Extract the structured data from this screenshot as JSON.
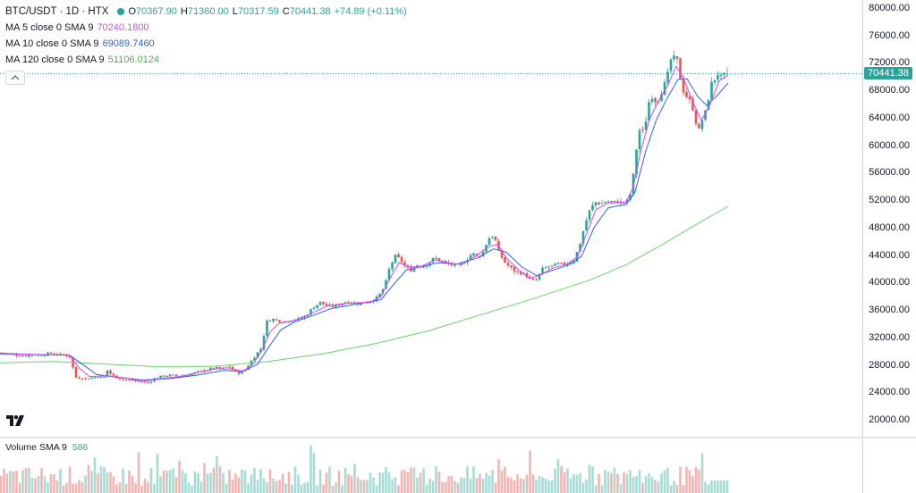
{
  "symbol": {
    "title": "BTC/USDT · 1D · HTX"
  },
  "ohlc": {
    "open_label": "O",
    "open": "70367.90",
    "high_label": "H",
    "high": "71360.00",
    "low_label": "L",
    "low": "70317.59",
    "close_label": "C",
    "close": "70441.38",
    "change": "+74.89 (+0.11%)"
  },
  "indicators": [
    {
      "name": "MA 5 close 0 SMA 9",
      "value": "70240.1800",
      "color": "#e040fb"
    },
    {
      "name": "MA 10 close 0 SMA 9",
      "value": "69089.7460",
      "color": "#2962ff"
    },
    {
      "name": "MA 120 close 0 SMA 9",
      "value": "51106.0124",
      "color": "#66d566"
    }
  ],
  "price_axis": {
    "labels": [
      "80000.00",
      "76000.00",
      "72000.00",
      "68000.00",
      "64000.00",
      "60000.00",
      "56000.00",
      "52000.00",
      "48000.00",
      "44000.00",
      "40000.00",
      "36000.00",
      "32000.00",
      "28000.00",
      "24000.00",
      "20000.00"
    ],
    "current_price_badge": "70441.38"
  },
  "volume": {
    "legend": "Volume SMA 9",
    "value": "586"
  },
  "colors": {
    "up": "#26a69a",
    "down": "#ef5350",
    "up_volume": "#a7dcd5",
    "down_volume": "#f6b3b1"
  },
  "icons": {
    "collapse": "chevron-up-icon",
    "logo": "tradingview-logo-icon"
  },
  "chart_data": {
    "type": "candlestick",
    "symbol": "BTC/USDT",
    "interval": "1D",
    "exchange": "HTX",
    "y_range": [
      18000,
      81000
    ],
    "ticks": [
      80000,
      76000,
      72000,
      68000,
      64000,
      60000,
      56000,
      52000,
      48000,
      44000,
      40000,
      36000,
      32000,
      28000,
      24000,
      20000
    ],
    "grid": false,
    "close_path": [
      [
        0,
        29800
      ],
      [
        10,
        29600
      ],
      [
        20,
        29400
      ],
      [
        28,
        29300
      ],
      [
        36,
        29500
      ],
      [
        46,
        29400
      ],
      [
        56,
        29700
      ],
      [
        66,
        29500
      ],
      [
        74,
        29400
      ],
      [
        80,
        29000
      ],
      [
        83,
        26200
      ],
      [
        90,
        26100
      ],
      [
        100,
        26000
      ],
      [
        108,
        26300
      ],
      [
        116,
        26100
      ],
      [
        120,
        27200
      ],
      [
        126,
        26400
      ],
      [
        134,
        26000
      ],
      [
        142,
        25800
      ],
      [
        150,
        25700
      ],
      [
        158,
        25600
      ],
      [
        164,
        25300
      ],
      [
        170,
        25800
      ],
      [
        176,
        26200
      ],
      [
        184,
        26400
      ],
      [
        192,
        26500
      ],
      [
        200,
        26300
      ],
      [
        208,
        26500
      ],
      [
        216,
        26800
      ],
      [
        224,
        27100
      ],
      [
        232,
        27300
      ],
      [
        240,
        27600
      ],
      [
        248,
        27400
      ],
      [
        256,
        27800
      ],
      [
        262,
        27000
      ],
      [
        268,
        26800
      ],
      [
        274,
        27300
      ],
      [
        280,
        28400
      ],
      [
        286,
        29500
      ],
      [
        292,
        30400
      ],
      [
        298,
        34300
      ],
      [
        304,
        34700
      ],
      [
        310,
        34500
      ],
      [
        318,
        34300
      ],
      [
        326,
        34600
      ],
      [
        334,
        34700
      ],
      [
        342,
        35100
      ],
      [
        350,
        36400
      ],
      [
        358,
        37100
      ],
      [
        366,
        36600
      ],
      [
        374,
        36500
      ],
      [
        382,
        37000
      ],
      [
        390,
        37300
      ],
      [
        398,
        36900
      ],
      [
        406,
        37100
      ],
      [
        414,
        37300
      ],
      [
        422,
        37800
      ],
      [
        430,
        39400
      ],
      [
        436,
        42400
      ],
      [
        442,
        43800
      ],
      [
        448,
        43300
      ],
      [
        454,
        42100
      ],
      [
        460,
        41800
      ],
      [
        466,
        42600
      ],
      [
        472,
        42300
      ],
      [
        480,
        42900
      ],
      [
        486,
        43600
      ],
      [
        492,
        43200
      ],
      [
        498,
        42800
      ],
      [
        504,
        42600
      ],
      [
        510,
        42400
      ],
      [
        516,
        42700
      ],
      [
        522,
        43400
      ],
      [
        528,
        44300
      ],
      [
        534,
        43700
      ],
      [
        540,
        44500
      ],
      [
        546,
        46400
      ],
      [
        552,
        46900
      ],
      [
        558,
        44300
      ],
      [
        564,
        43000
      ],
      [
        570,
        42200
      ],
      [
        576,
        41600
      ],
      [
        582,
        41400
      ],
      [
        588,
        41100
      ],
      [
        594,
        40200
      ],
      [
        600,
        40400
      ],
      [
        606,
        41900
      ],
      [
        612,
        42300
      ],
      [
        618,
        42400
      ],
      [
        624,
        42700
      ],
      [
        630,
        42600
      ],
      [
        636,
        42800
      ],
      [
        642,
        43300
      ],
      [
        648,
        45500
      ],
      [
        654,
        48500
      ],
      [
        660,
        50800
      ],
      [
        666,
        51700
      ],
      [
        672,
        51500
      ],
      [
        678,
        51900
      ],
      [
        684,
        51600
      ],
      [
        690,
        51800
      ],
      [
        696,
        51600
      ],
      [
        702,
        51900
      ],
      [
        706,
        53500
      ],
      [
        710,
        57700
      ],
      [
        714,
        62400
      ],
      [
        718,
        61700
      ],
      [
        722,
        63700
      ],
      [
        726,
        66700
      ],
      [
        730,
        67300
      ],
      [
        734,
        66100
      ],
      [
        738,
        67500
      ],
      [
        742,
        68500
      ],
      [
        746,
        70000
      ],
      [
        750,
        72500
      ],
      [
        754,
        72700
      ],
      [
        758,
        72200
      ],
      [
        762,
        68500
      ],
      [
        766,
        67400
      ],
      [
        770,
        66700
      ],
      [
        774,
        65700
      ],
      [
        778,
        63400
      ],
      [
        782,
        62000
      ],
      [
        786,
        64300
      ],
      [
        790,
        65100
      ],
      [
        794,
        68700
      ],
      [
        798,
        69400
      ],
      [
        802,
        70500
      ],
      [
        806,
        69900
      ],
      [
        810,
        70200
      ],
      [
        814,
        70441
      ]
    ],
    "ma5_path": [
      [
        0,
        29700
      ],
      [
        40,
        29500
      ],
      [
        78,
        29400
      ],
      [
        88,
        27600
      ],
      [
        100,
        26300
      ],
      [
        120,
        26400
      ],
      [
        140,
        26100
      ],
      [
        160,
        25600
      ],
      [
        180,
        26000
      ],
      [
        200,
        26300
      ],
      [
        220,
        26800
      ],
      [
        240,
        27400
      ],
      [
        260,
        27400
      ],
      [
        272,
        27100
      ],
      [
        282,
        28000
      ],
      [
        292,
        29900
      ],
      [
        302,
        32800
      ],
      [
        312,
        34100
      ],
      [
        330,
        34500
      ],
      [
        350,
        35600
      ],
      [
        366,
        36600
      ],
      [
        390,
        37000
      ],
      [
        414,
        37100
      ],
      [
        426,
        38000
      ],
      [
        436,
        40600
      ],
      [
        446,
        42900
      ],
      [
        458,
        42300
      ],
      [
        470,
        42300
      ],
      [
        486,
        43300
      ],
      [
        500,
        42900
      ],
      [
        516,
        42600
      ],
      [
        530,
        43700
      ],
      [
        546,
        45200
      ],
      [
        556,
        45600
      ],
      [
        566,
        43600
      ],
      [
        580,
        41800
      ],
      [
        592,
        40600
      ],
      [
        604,
        41100
      ],
      [
        618,
        42100
      ],
      [
        634,
        42700
      ],
      [
        646,
        43800
      ],
      [
        656,
        47200
      ],
      [
        666,
        50600
      ],
      [
        680,
        51600
      ],
      [
        700,
        51700
      ],
      [
        708,
        53900
      ],
      [
        716,
        59000
      ],
      [
        726,
        63700
      ],
      [
        736,
        66500
      ],
      [
        746,
        68600
      ],
      [
        756,
        71500
      ],
      [
        764,
        69800
      ],
      [
        774,
        66500
      ],
      [
        784,
        63600
      ],
      [
        794,
        66000
      ],
      [
        804,
        69400
      ],
      [
        814,
        70240
      ]
    ],
    "ma10_path": [
      [
        0,
        29600
      ],
      [
        40,
        29500
      ],
      [
        78,
        29400
      ],
      [
        92,
        28100
      ],
      [
        108,
        26600
      ],
      [
        130,
        26200
      ],
      [
        160,
        25800
      ],
      [
        190,
        26000
      ],
      [
        220,
        26500
      ],
      [
        250,
        27200
      ],
      [
        270,
        27000
      ],
      [
        288,
        28100
      ],
      [
        300,
        30500
      ],
      [
        314,
        33100
      ],
      [
        330,
        34300
      ],
      [
        350,
        35200
      ],
      [
        370,
        36200
      ],
      [
        400,
        36900
      ],
      [
        426,
        37500
      ],
      [
        440,
        39700
      ],
      [
        454,
        41800
      ],
      [
        470,
        42300
      ],
      [
        490,
        42900
      ],
      [
        512,
        42700
      ],
      [
        534,
        43600
      ],
      [
        552,
        44900
      ],
      [
        566,
        44400
      ],
      [
        584,
        42200
      ],
      [
        600,
        41000
      ],
      [
        616,
        41700
      ],
      [
        634,
        42500
      ],
      [
        650,
        43800
      ],
      [
        664,
        48000
      ],
      [
        680,
        50900
      ],
      [
        700,
        51400
      ],
      [
        710,
        53200
      ],
      [
        722,
        59200
      ],
      [
        734,
        63800
      ],
      [
        746,
        66900
      ],
      [
        758,
        69600
      ],
      [
        768,
        69700
      ],
      [
        780,
        67100
      ],
      [
        790,
        65800
      ],
      [
        802,
        67300
      ],
      [
        814,
        69090
      ]
    ],
    "ma120_path": [
      [
        0,
        28300
      ],
      [
        60,
        28500
      ],
      [
        120,
        28100
      ],
      [
        180,
        27700
      ],
      [
        240,
        27800
      ],
      [
        300,
        28500
      ],
      [
        360,
        29600
      ],
      [
        420,
        31100
      ],
      [
        480,
        33000
      ],
      [
        540,
        35400
      ],
      [
        600,
        37800
      ],
      [
        660,
        40400
      ],
      [
        700,
        42600
      ],
      [
        740,
        45500
      ],
      [
        780,
        48600
      ],
      [
        814,
        51106
      ]
    ]
  }
}
